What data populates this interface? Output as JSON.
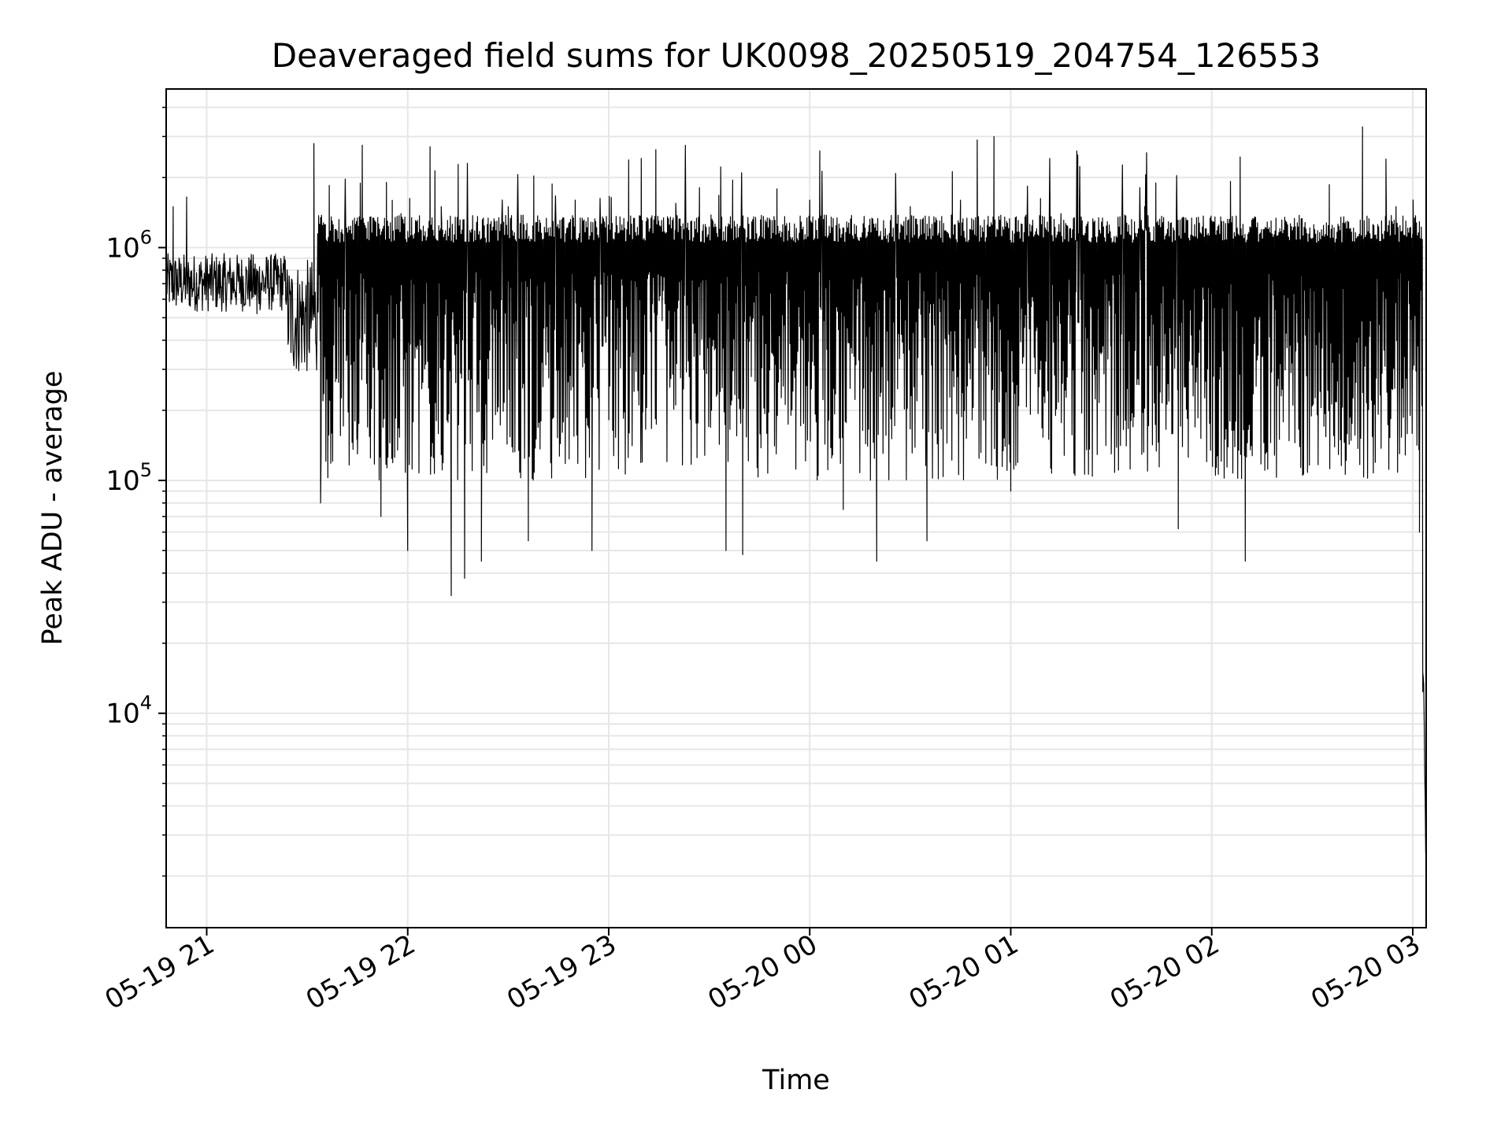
{
  "chart_data": {
    "type": "line",
    "title": "Deaveraged field sums for UK0098_20250519_204754_126553",
    "xlabel": "Time",
    "ylabel": "Peak ADU - average",
    "yscale": "log",
    "ylim": [
      1200,
      4800000
    ],
    "xlim": [
      "2025-05-19 20:47:54",
      "2025-05-20 03:04:00"
    ],
    "grid": true,
    "legend": "none",
    "x_ticks": [
      "05-19 21",
      "05-19 22",
      "05-19 23",
      "05-20 00",
      "05-20 01",
      "05-20 02",
      "05-20 03"
    ],
    "y_ticks": [
      {
        "base": "10",
        "exp": "4",
        "value": 10000
      },
      {
        "base": "10",
        "exp": "5",
        "value": 100000
      },
      {
        "base": "10",
        "exp": "6",
        "value": 1000000
      }
    ],
    "series": [
      {
        "color": "#000000",
        "points": [
          [
            "2025-05-19 20:48",
            900000
          ],
          [
            "2025-05-19 20:50",
            1500000
          ],
          [
            "2025-05-19 20:52",
            800000
          ],
          [
            "2025-05-19 20:54",
            1650000
          ],
          [
            "2025-05-19 20:56",
            650000
          ],
          [
            "2025-05-19 21:00",
            720000
          ],
          [
            "2025-05-19 21:05",
            580000
          ],
          [
            "2025-05-19 21:10",
            750000
          ],
          [
            "2025-05-19 21:15",
            520000
          ],
          [
            "2025-05-19 21:20",
            780000
          ],
          [
            "2025-05-19 21:25",
            650000
          ],
          [
            "2025-05-19 21:30",
            400000
          ],
          [
            "2025-05-19 21:32",
            2800000
          ],
          [
            "2025-05-19 21:34",
            80000
          ],
          [
            "2025-05-19 21:40",
            600000
          ],
          [
            "2025-05-19 21:45",
            130000
          ],
          [
            "2025-05-19 21:50",
            900000
          ],
          [
            "2025-05-19 21:52",
            70000
          ],
          [
            "2025-05-19 21:58",
            1400000
          ],
          [
            "2025-05-19 22:00",
            50000
          ],
          [
            "2025-05-19 22:10",
            1500000
          ],
          [
            "2025-05-19 22:13",
            32000
          ],
          [
            "2025-05-19 22:17",
            38000
          ],
          [
            "2025-05-19 22:22",
            45000
          ],
          [
            "2025-05-19 22:30",
            1500000
          ],
          [
            "2025-05-19 22:36",
            55000
          ],
          [
            "2025-05-19 22:50",
            1600000
          ],
          [
            "2025-05-19 22:55",
            50000
          ],
          [
            "2025-05-19 23:10",
            120000
          ],
          [
            "2025-05-19 23:20",
            1550000
          ],
          [
            "2025-05-19 23:35",
            50000
          ],
          [
            "2025-05-19 23:37",
            1950000
          ],
          [
            "2025-05-19 23:40",
            48000
          ],
          [
            "2025-05-19 23:50",
            130000
          ],
          [
            "2025-05-20 00:00",
            1600000
          ],
          [
            "2025-05-20 00:03",
            2600000
          ],
          [
            "2025-05-20 00:10",
            75000
          ],
          [
            "2025-05-20 00:20",
            45000
          ],
          [
            "2025-05-20 00:30",
            1500000
          ],
          [
            "2025-05-20 00:35",
            55000
          ],
          [
            "2025-05-20 00:45",
            1600000
          ],
          [
            "2025-05-20 00:50",
            2900000
          ],
          [
            "2025-05-20 00:55",
            3000000
          ],
          [
            "2025-05-20 01:00",
            90000
          ],
          [
            "2025-05-20 01:15",
            1400000
          ],
          [
            "2025-05-20 01:20",
            2500000
          ],
          [
            "2025-05-20 01:30",
            130000
          ],
          [
            "2025-05-20 01:40",
            1500000
          ],
          [
            "2025-05-20 01:50",
            62000
          ],
          [
            "2025-05-20 02:00",
            1300000
          ],
          [
            "2025-05-20 02:10",
            45000
          ],
          [
            "2025-05-20 02:20",
            1000000
          ],
          [
            "2025-05-20 02:30",
            500000
          ],
          [
            "2025-05-20 02:40",
            400000
          ],
          [
            "2025-05-20 02:45",
            3300000
          ],
          [
            "2025-05-20 02:50",
            700000
          ],
          [
            "2025-05-20 02:52",
            2400000
          ],
          [
            "2025-05-20 02:55",
            1500000
          ],
          [
            "2025-05-20 02:58",
            900000
          ],
          [
            "2025-05-20 03:00",
            300000
          ],
          [
            "2025-05-20 03:02",
            60000
          ],
          [
            "2025-05-20 03:03",
            15000
          ],
          [
            "2025-05-20 03:04",
            2200
          ]
        ]
      }
    ]
  }
}
